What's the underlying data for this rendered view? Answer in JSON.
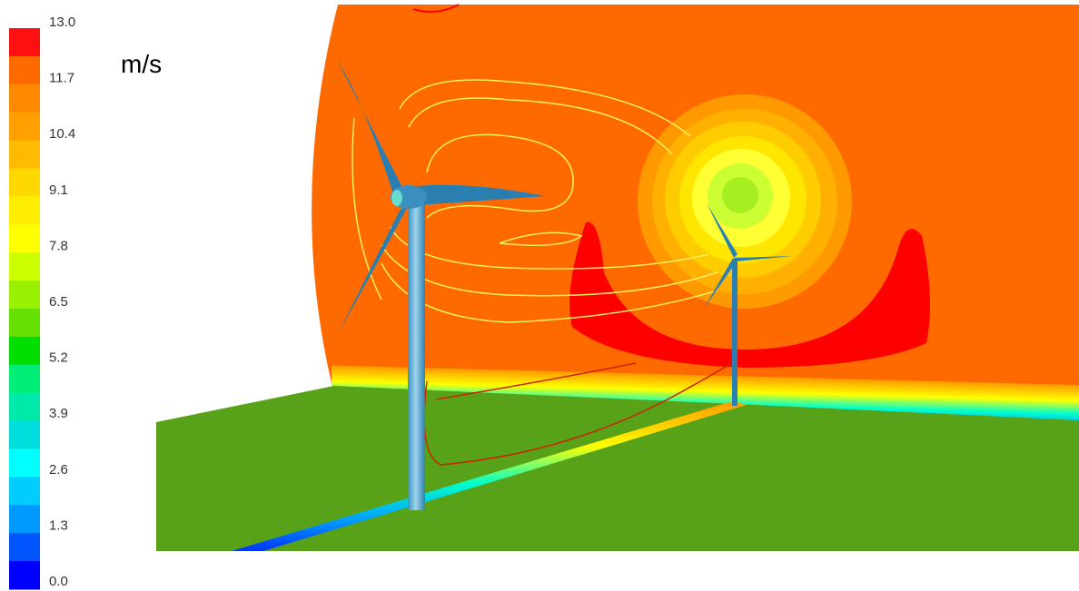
{
  "legend": {
    "unit": "m/s",
    "ticks": [
      "13.0",
      "11.7",
      "10.4",
      "9.1",
      "7.8",
      "6.5",
      "5.2",
      "3.9",
      "2.6",
      "1.3",
      "0.0"
    ]
  }
}
